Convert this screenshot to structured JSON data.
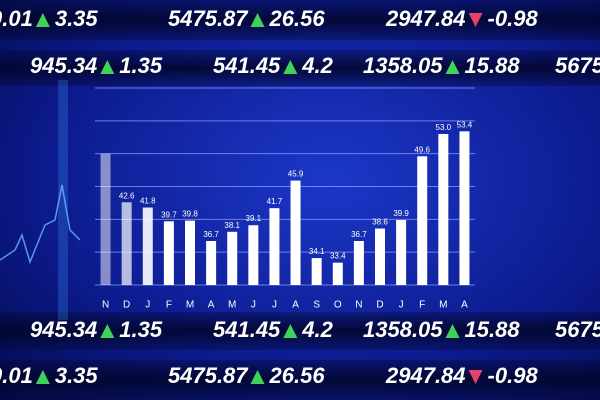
{
  "chart_data": {
    "type": "bar",
    "categories": [
      "N",
      "D",
      "J",
      "F",
      "M",
      "A",
      "M",
      "J",
      "J",
      "A",
      "S",
      "O",
      "N",
      "D",
      "J",
      "F",
      "M",
      "A"
    ],
    "values": [
      50,
      42.6,
      41.8,
      39.7,
      39.8,
      36.7,
      38.1,
      39.1,
      41.7,
      45.9,
      34.1,
      33.4,
      36.7,
      38.6,
      39.9,
      49.6,
      53.0,
      53.4
    ],
    "value_labels": [
      null,
      "42.6",
      "41.8",
      "39.7",
      "39.8",
      "36.7",
      "38.1",
      "39.1",
      "41.7",
      "45.9",
      "34.1",
      "33.4",
      "36.7",
      "38.6",
      "39.9",
      "49.6",
      "53.0",
      "53.4"
    ],
    "color": "#ffffff",
    "ylim": [
      30,
      60
    ],
    "yticks": [
      30,
      35,
      40,
      45,
      50,
      55,
      60
    ],
    "grid": true
  },
  "tickers": [
    [
      {
        "price": "0.01",
        "change": "3.35",
        "direction": "up"
      },
      {
        "price": "5475.87",
        "change": "26.56",
        "direction": "up"
      },
      {
        "price": "2947.84",
        "change": "-0.98",
        "direction": "down"
      }
    ],
    [
      {
        "price": "945.34",
        "change": "1.35",
        "direction": "up"
      },
      {
        "price": "541.45",
        "change": "4.2",
        "direction": "up"
      },
      {
        "price": "1358.05",
        "change": "15.88",
        "direction": "up"
      },
      {
        "price": "5675"
      }
    ],
    [
      {
        "price": "945.34",
        "change": "1.35",
        "direction": "up"
      },
      {
        "price": "541.45",
        "change": "4.2",
        "direction": "up"
      },
      {
        "price": "1358.05",
        "change": "15.88",
        "direction": "up"
      },
      {
        "price": "5675"
      }
    ],
    [
      {
        "price": "0.01",
        "change": "3.35",
        "direction": "up"
      },
      {
        "price": "5475.87",
        "change": "26.56",
        "direction": "up"
      },
      {
        "price": "2947.84",
        "change": "-0.98",
        "direction": "down"
      }
    ]
  ]
}
